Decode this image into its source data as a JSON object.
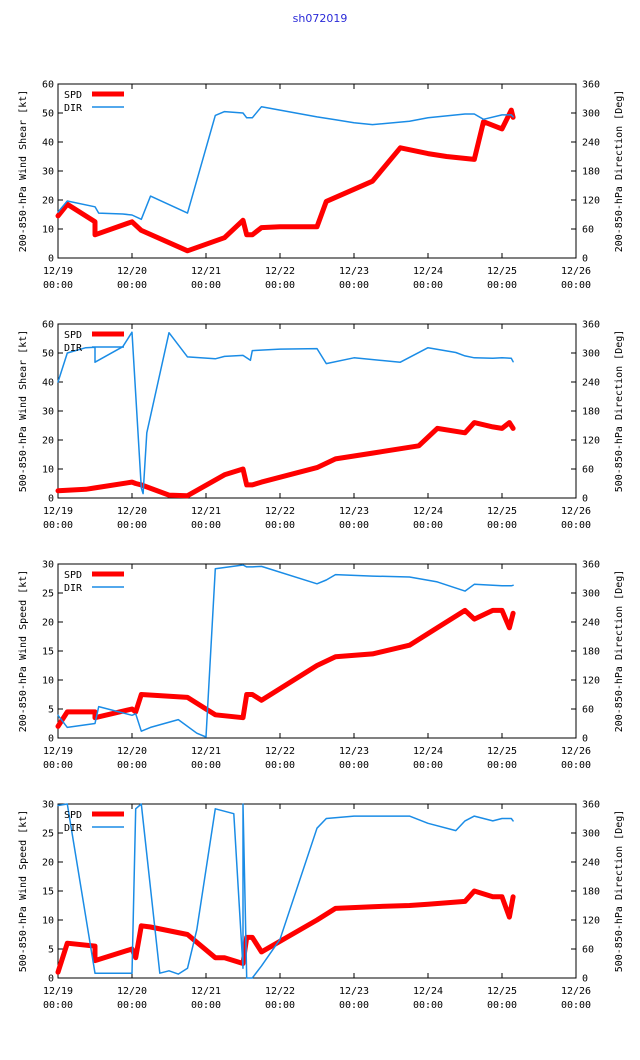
{
  "page": {
    "title": "sh072019"
  },
  "colors": {
    "spd": "#ff0000",
    "dir": "#1a8ce6",
    "axis": "#000000",
    "title": "#2a2ad8"
  },
  "chart_data": [
    {
      "type": "line",
      "ylabel": "200-850-hPa Wind Shear [kt]",
      "y2label": "200-850-hPa Direction [Deg]",
      "ylim": [
        0,
        60
      ],
      "yticks": [
        0,
        10,
        20,
        30,
        40,
        50,
        60
      ],
      "y2lim": [
        0,
        360
      ],
      "y2ticks": [
        0,
        60,
        120,
        180,
        240,
        300,
        360
      ],
      "xlim": [
        0,
        7
      ],
      "xticks": [
        {
          "v": 0,
          "d": "12/19",
          "t": "00:00"
        },
        {
          "v": 1,
          "d": "12/20",
          "t": "00:00"
        },
        {
          "v": 2,
          "d": "12/21",
          "t": "00:00"
        },
        {
          "v": 3,
          "d": "12/22",
          "t": "00:00"
        },
        {
          "v": 4,
          "d": "12/23",
          "t": "00:00"
        },
        {
          "v": 5,
          "d": "12/24",
          "t": "00:00"
        },
        {
          "v": 6,
          "d": "12/25",
          "t": "00:00"
        },
        {
          "v": 7,
          "d": "12/26",
          "t": "00:00"
        }
      ],
      "legend": [
        "SPD",
        "DIR"
      ],
      "series": [
        {
          "name": "SPD",
          "axis": "left",
          "x": [
            0,
            0.125,
            0.5,
            0.5,
            1.0,
            1.125,
            1.75,
            2.25,
            2.5,
            2.55,
            2.625,
            2.75,
            3.0,
            3.5,
            3.625,
            4.25,
            4.625,
            5.0,
            5.25,
            5.625,
            5.75,
            6.0,
            6.125,
            6.15
          ],
          "y": [
            14.5,
            18.5,
            12.5,
            8,
            12.5,
            9.5,
            2.5,
            7,
            13,
            8,
            8,
            10.5,
            10.8,
            10.8,
            19.5,
            26.5,
            38,
            36,
            35,
            34,
            47,
            44.5,
            51,
            48.5
          ]
        },
        {
          "name": "DIR",
          "axis": "right",
          "x": [
            0,
            0.125,
            0.5,
            0.55,
            0.875,
            1.0,
            1.125,
            1.25,
            1.75,
            2.125,
            2.25,
            2.5,
            2.55,
            2.625,
            2.75,
            3.0,
            3.5,
            3.75,
            4.0,
            4.25,
            4.75,
            5.0,
            5.5,
            5.625,
            5.75,
            6.0,
            6.125,
            6.15
          ],
          "y": [
            95,
            118,
            106,
            93,
            91,
            89,
            80,
            128,
            93,
            295,
            303,
            300,
            290,
            290,
            313,
            306,
            292,
            286,
            280,
            276,
            283,
            290,
            298,
            298,
            287,
            296,
            296,
            292
          ]
        }
      ]
    },
    {
      "type": "line",
      "ylabel": "500-850-hPa Wind Shear [kt]",
      "y2label": "500-850-hPa Direction [Deg]",
      "ylim": [
        0,
        60
      ],
      "yticks": [
        0,
        10,
        20,
        30,
        40,
        50,
        60
      ],
      "y2lim": [
        0,
        360
      ],
      "y2ticks": [
        0,
        60,
        120,
        180,
        240,
        300,
        360
      ],
      "xlim": [
        0,
        7
      ],
      "xticks": [
        {
          "v": 0,
          "d": "12/19",
          "t": "00:00"
        },
        {
          "v": 1,
          "d": "12/20",
          "t": "00:00"
        },
        {
          "v": 2,
          "d": "12/21",
          "t": "00:00"
        },
        {
          "v": 3,
          "d": "12/22",
          "t": "00:00"
        },
        {
          "v": 4,
          "d": "12/23",
          "t": "00:00"
        },
        {
          "v": 5,
          "d": "12/24",
          "t": "00:00"
        },
        {
          "v": 6,
          "d": "12/25",
          "t": "00:00"
        },
        {
          "v": 7,
          "d": "12/26",
          "t": "00:00"
        }
      ],
      "legend": [
        "SPD",
        "DIR"
      ],
      "series": [
        {
          "name": "SPD",
          "axis": "left",
          "x": [
            0,
            0.375,
            0.5,
            1.0,
            1.05,
            1.125,
            1.5,
            1.75,
            2.25,
            2.5,
            2.55,
            2.625,
            2.75,
            3.5,
            3.75,
            4.25,
            4.875,
            5.125,
            5.5,
            5.625,
            5.875,
            6.0,
            6.1,
            6.15
          ],
          "y": [
            2.5,
            3,
            3.5,
            5.5,
            5,
            4.5,
            1,
            0.8,
            8,
            10,
            4.5,
            4.5,
            5.5,
            10.5,
            13.5,
            15.5,
            18,
            24,
            22.5,
            26,
            24.5,
            24,
            26,
            24
          ]
        },
        {
          "name": "DIR",
          "axis": "right",
          "x": [
            0,
            0.125,
            0.375,
            0.5,
            0.5,
            0.875,
            1.0,
            1.125,
            1.15,
            1.2,
            1.5,
            1.75,
            2.125,
            2.25,
            2.5,
            2.6,
            2.625,
            3.0,
            3.5,
            3.625,
            4.0,
            4.625,
            5.0,
            5.375,
            5.5,
            5.625,
            5.875,
            6.0,
            6.125,
            6.15
          ],
          "y": [
            240,
            300,
            311,
            312,
            281,
            313,
            343,
            21,
            9,
            135,
            342,
            292,
            288,
            293,
            295,
            285,
            305,
            308,
            309,
            278,
            290,
            281,
            311,
            301,
            294,
            290,
            289,
            290,
            289,
            282
          ]
        }
      ]
    },
    {
      "type": "line",
      "ylabel": "200-850-hPa Wind Speed [kt]",
      "y2label": "200-850-hPa Direction [Deg]",
      "ylim": [
        0,
        30
      ],
      "yticks": [
        0,
        5,
        10,
        15,
        20,
        25,
        30
      ],
      "y2lim": [
        0,
        360
      ],
      "y2ticks": [
        0,
        60,
        120,
        180,
        240,
        300,
        360
      ],
      "xlim": [
        0,
        7
      ],
      "xticks": [
        {
          "v": 0,
          "d": "12/19",
          "t": "00:00"
        },
        {
          "v": 1,
          "d": "12/20",
          "t": "00:00"
        },
        {
          "v": 2,
          "d": "12/21",
          "t": "00:00"
        },
        {
          "v": 3,
          "d": "12/22",
          "t": "00:00"
        },
        {
          "v": 4,
          "d": "12/23",
          "t": "00:00"
        },
        {
          "v": 5,
          "d": "12/24",
          "t": "00:00"
        },
        {
          "v": 6,
          "d": "12/25",
          "t": "00:00"
        },
        {
          "v": 7,
          "d": "12/26",
          "t": "00:00"
        }
      ],
      "legend": [
        "SPD",
        "DIR"
      ],
      "series": [
        {
          "name": "SPD",
          "axis": "left",
          "x": [
            0,
            0.125,
            0.5,
            0.5,
            1.0,
            1.05,
            1.125,
            1.75,
            2.0,
            2.125,
            2.5,
            2.55,
            2.625,
            2.75,
            3.5,
            3.75,
            4.25,
            4.75,
            5.125,
            5.5,
            5.625,
            5.875,
            6.0,
            6.1,
            6.15
          ],
          "y": [
            2,
            4.5,
            4.5,
            3.5,
            5,
            4.5,
            7.5,
            7,
            5,
            4,
            3.5,
            7.5,
            7.5,
            6.5,
            12.5,
            14,
            14.5,
            16,
            19,
            22,
            20.5,
            22,
            22,
            19,
            21.5
          ]
        },
        {
          "name": "DIR",
          "axis": "right",
          "x": [
            0,
            0.125,
            0.5,
            0.55,
            1.0,
            1.05,
            1.125,
            1.25,
            1.625,
            1.875,
            2.0,
            2.125,
            2.5,
            2.55,
            2.625,
            2.75,
            3.5,
            3.625,
            3.75,
            4.25,
            4.75,
            5.125,
            5.5,
            5.625,
            5.875,
            6.0,
            6.125,
            6.15
          ],
          "y": [
            47,
            22,
            30,
            65,
            47,
            50,
            14,
            22,
            38,
            10,
            2,
            350,
            358,
            354,
            354,
            355,
            319,
            327,
            338,
            335,
            333,
            323,
            304,
            318,
            316,
            315,
            315,
            316
          ]
        }
      ]
    },
    {
      "type": "line",
      "ylabel": "500-850-hPa Wind Speed [kt]",
      "y2label": "500-850-hPa Direction [Deg]",
      "ylim": [
        0,
        30
      ],
      "yticks": [
        0,
        5,
        10,
        15,
        20,
        25,
        30
      ],
      "y2lim": [
        0,
        360
      ],
      "y2ticks": [
        0,
        60,
        120,
        180,
        240,
        300,
        360
      ],
      "xlim": [
        0,
        7
      ],
      "xticks": [
        {
          "v": 0,
          "d": "12/19",
          "t": "00:00"
        },
        {
          "v": 1,
          "d": "12/20",
          "t": "00:00"
        },
        {
          "v": 2,
          "d": "12/21",
          "t": "00:00"
        },
        {
          "v": 3,
          "d": "12/22",
          "t": "00:00"
        },
        {
          "v": 4,
          "d": "12/23",
          "t": "00:00"
        },
        {
          "v": 5,
          "d": "12/24",
          "t": "00:00"
        },
        {
          "v": 6,
          "d": "12/25",
          "t": "00:00"
        },
        {
          "v": 7,
          "d": "12/26",
          "t": "00:00"
        }
      ],
      "legend": [
        "SPD",
        "DIR"
      ],
      "series": [
        {
          "name": "SPD",
          "axis": "left",
          "x": [
            0,
            0.125,
            0.5,
            0.5,
            1.0,
            1.05,
            1.125,
            1.25,
            1.75,
            2.125,
            2.25,
            2.5,
            2.55,
            2.625,
            2.75,
            3.5,
            3.75,
            4.25,
            4.75,
            5.0,
            5.5,
            5.625,
            5.875,
            6.0,
            6.1,
            6.15
          ],
          "y": [
            1,
            6,
            5.5,
            3,
            5,
            3.5,
            9,
            8.8,
            7.5,
            3.5,
            3.5,
            2.5,
            7,
            7,
            4.5,
            10,
            12,
            12.3,
            12.5,
            12.7,
            13.2,
            15,
            14,
            14,
            10.5,
            14
          ]
        },
        {
          "name": "DIR",
          "axis": "right",
          "x": [
            0,
            0.125,
            0.5,
            1.0,
            1.05,
            1.125,
            1.375,
            1.5,
            1.625,
            1.75,
            1.875,
            2.125,
            2.375,
            2.5,
            2.5,
            2.55,
            2.625,
            2.75,
            3.0,
            3.5,
            3.625,
            4.0,
            4.75,
            5.0,
            5.375,
            5.5,
            5.625,
            5.875,
            6.0,
            6.125,
            6.15
          ],
          "y": [
            357,
            360,
            10,
            10,
            350,
            360,
            10,
            15,
            8,
            20,
            100,
            350,
            340,
            20,
            360,
            0,
            0,
            25,
            80,
            310,
            330,
            335,
            335,
            320,
            305,
            325,
            335,
            325,
            330,
            330,
            325
          ]
        }
      ]
    }
  ]
}
